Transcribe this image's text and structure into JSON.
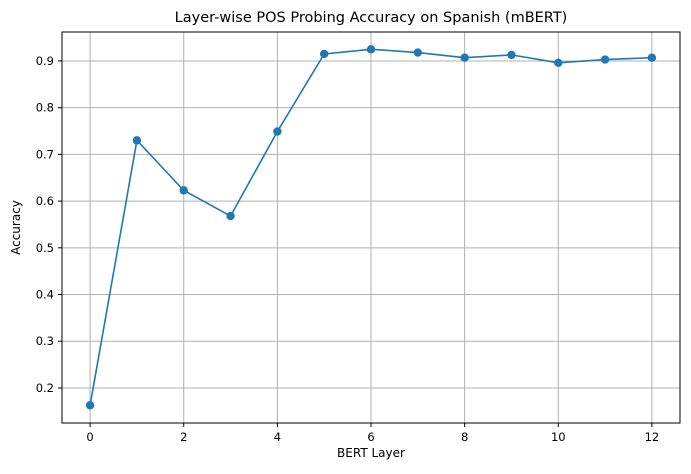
{
  "chart_data": {
    "type": "line",
    "title": "Layer-wise POS Probing Accuracy on Spanish (mBERT)",
    "xlabel": "BERT Layer",
    "ylabel": "Accuracy",
    "xlim": [
      -0.6,
      12.6
    ],
    "ylim": [
      0.125,
      0.962
    ],
    "x_ticks": [
      0,
      2,
      4,
      6,
      8,
      10,
      12
    ],
    "y_ticks": [
      0.2,
      0.3,
      0.4,
      0.5,
      0.6,
      0.7,
      0.8,
      0.9
    ],
    "grid": true,
    "marker": "circle",
    "series": [
      {
        "color": "#1f77b4",
        "x": [
          0,
          1,
          2,
          3,
          4,
          5,
          6,
          7,
          8,
          9,
          10,
          11,
          12
        ],
        "y": [
          0.163,
          0.73,
          0.623,
          0.568,
          0.749,
          0.915,
          0.925,
          0.918,
          0.907,
          0.913,
          0.896,
          0.903,
          0.907
        ]
      }
    ]
  }
}
